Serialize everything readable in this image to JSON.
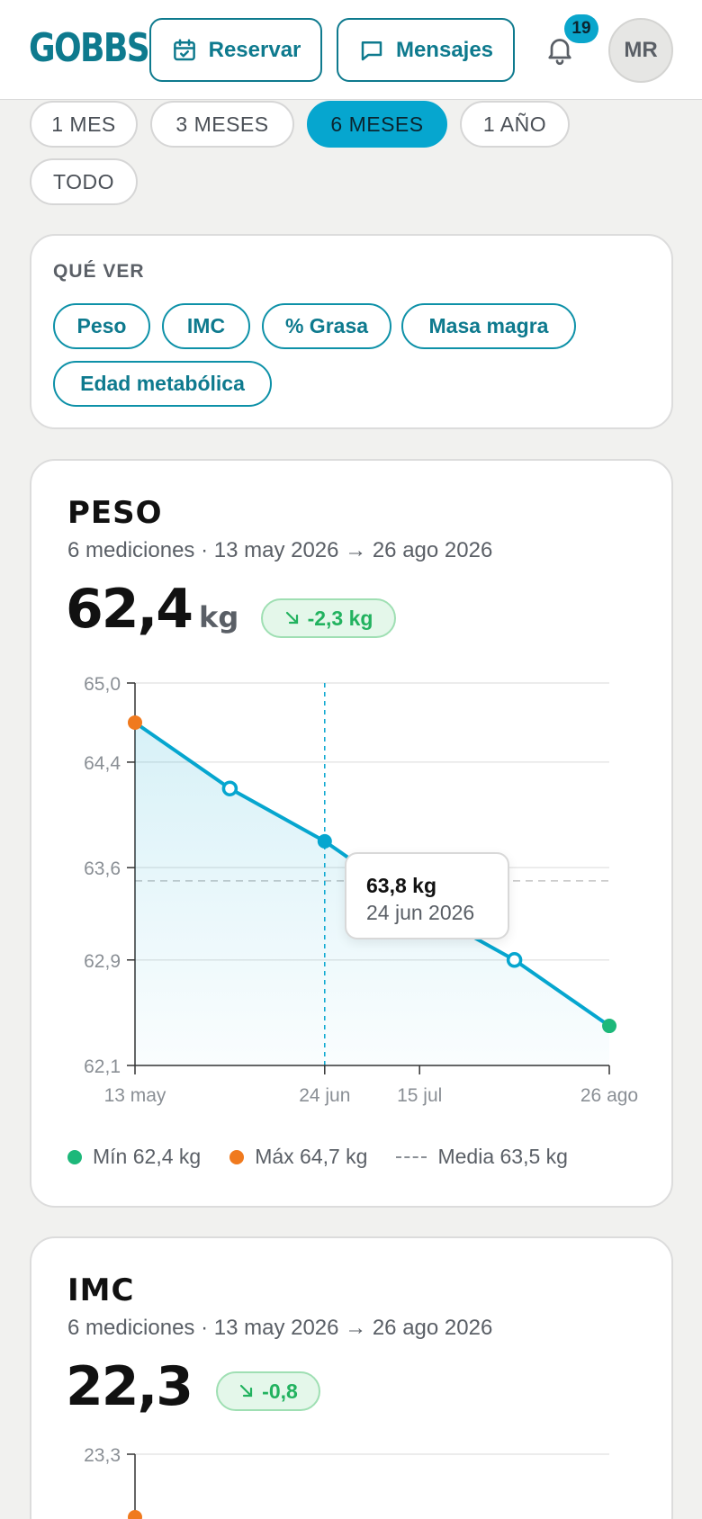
{
  "header": {
    "logo": "GOBBS",
    "logo_mark": "®",
    "reserve_label": "Reservar",
    "messages_label": "Mensajes",
    "notification_count": "19",
    "avatar_initials": "MR",
    "icons": [
      "calendar-check-icon",
      "chat-bubble-icon",
      "bell-icon"
    ]
  },
  "ranges": [
    {
      "label": "1 MES",
      "active": false
    },
    {
      "label": "3 MESES",
      "active": false
    },
    {
      "label": "6 MESES",
      "active": true
    },
    {
      "label": "1 AÑO",
      "active": false
    },
    {
      "label": "TODO",
      "active": false
    }
  ],
  "view": {
    "title": "QUÉ VER",
    "chips": [
      "Peso",
      "IMC",
      "% Grasa",
      "Masa magra",
      "Edad metabólica"
    ]
  },
  "metrics": {
    "weight": {
      "title": "PESO",
      "subtitle": "6 mediciones · 13 may 2026 → 26 ago 2026",
      "value": "62,4",
      "unit": "kg",
      "delta": "-2,3 kg",
      "tooltip": {
        "value": "63,8 kg",
        "date": "24 jun 2026"
      },
      "legend": {
        "min": "Mín 62,4 kg",
        "max": "Máx 64,7 kg",
        "mean": "Media 63,5 kg"
      }
    },
    "bmi": {
      "title": "IMC",
      "subtitle": "6 mediciones · 13 may 2026 → 26 ago 2026",
      "value": "22,3",
      "delta": "-0,8",
      "top_tick": "23,3"
    }
  },
  "colors": {
    "accent": "#06a6cf",
    "brand": "#0e7a8e",
    "min": "#1db87a",
    "max": "#f07a1e",
    "down": "#22b25f"
  },
  "chart_data": [
    {
      "type": "line",
      "title": "PESO",
      "x": [
        "2026-05-13",
        "2026-06-03",
        "2026-06-24",
        "2026-07-15",
        "2026-08-05",
        "2026-08-26"
      ],
      "y": [
        64.7,
        64.2,
        63.8,
        63.3,
        62.9,
        62.4
      ],
      "y_unit": "kg",
      "ylim": [
        62.1,
        65.0
      ],
      "y_ticks": [
        "65,0",
        "64,4",
        "63,6",
        "62,9",
        "62,1"
      ],
      "y_tick_values": [
        65.0,
        64.4,
        63.6,
        62.9,
        62.1
      ],
      "x_ticks": [
        "13 may",
        "24 jun",
        "15 jul",
        "26 ago"
      ],
      "x_tick_values": [
        "2026-05-13",
        "2026-06-24",
        "2026-07-15",
        "2026-08-26"
      ],
      "mean": 63.5,
      "min_index": 5,
      "max_index": 0,
      "highlight_index": 2,
      "grid": true,
      "area_fill": true
    }
  ]
}
